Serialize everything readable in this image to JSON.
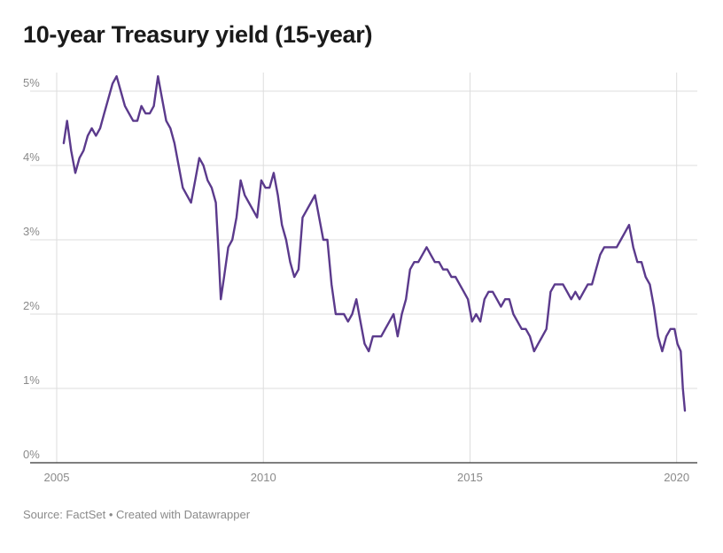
{
  "title": "10-year Treasury yield (15-year)",
  "footer": {
    "source": "Source: FactSet",
    "separator": " • ",
    "credit": "Created with Datawrapper"
  },
  "colors": {
    "line": "#5b3a8c",
    "grid": "#dddddd",
    "axis": "#333333",
    "label": "#8a8a8a"
  },
  "chart_data": {
    "type": "line",
    "title": "10-year Treasury yield (15-year)",
    "xlabel": "",
    "ylabel": "",
    "xlim": [
      2005.0,
      2020.5
    ],
    "ylim": [
      0,
      5.25
    ],
    "x_ticks": [
      2005,
      2010,
      2015,
      2020
    ],
    "x_tick_labels": [
      "2005",
      "2010",
      "2015",
      "2020"
    ],
    "y_ticks": [
      0,
      1,
      2,
      3,
      4,
      5
    ],
    "y_tick_labels": [
      "0%",
      "1%",
      "2%",
      "3%",
      "4%",
      "5%"
    ],
    "grid": true,
    "legend": "none",
    "series": [
      {
        "x": [
          2005.17,
          2005.25,
          2005.35,
          2005.45,
          2005.55,
          2005.65,
          2005.75,
          2005.85,
          2005.95,
          2006.05,
          2006.15,
          2006.25,
          2006.35,
          2006.45,
          2006.55,
          2006.65,
          2006.75,
          2006.85,
          2006.95,
          2007.05,
          2007.15,
          2007.25,
          2007.35,
          2007.45,
          2007.55,
          2007.65,
          2007.75,
          2007.85,
          2007.95,
          2008.05,
          2008.15,
          2008.25,
          2008.35,
          2008.45,
          2008.55,
          2008.65,
          2008.75,
          2008.85,
          2008.92,
          2008.97,
          2009.05,
          2009.15,
          2009.25,
          2009.35,
          2009.45,
          2009.55,
          2009.65,
          2009.75,
          2009.85,
          2009.95,
          2010.05,
          2010.15,
          2010.25,
          2010.35,
          2010.45,
          2010.55,
          2010.65,
          2010.75,
          2010.85,
          2010.95,
          2011.05,
          2011.15,
          2011.25,
          2011.35,
          2011.45,
          2011.55,
          2011.65,
          2011.75,
          2011.85,
          2011.95,
          2012.05,
          2012.15,
          2012.25,
          2012.35,
          2012.45,
          2012.55,
          2012.65,
          2012.75,
          2012.85,
          2012.95,
          2013.05,
          2013.15,
          2013.25,
          2013.35,
          2013.45,
          2013.55,
          2013.65,
          2013.75,
          2013.85,
          2013.95,
          2014.05,
          2014.15,
          2014.25,
          2014.35,
          2014.45,
          2014.55,
          2014.65,
          2014.75,
          2014.85,
          2014.95,
          2015.05,
          2015.15,
          2015.25,
          2015.35,
          2015.45,
          2015.55,
          2015.65,
          2015.75,
          2015.85,
          2015.95,
          2016.05,
          2016.15,
          2016.25,
          2016.35,
          2016.45,
          2016.55,
          2016.65,
          2016.75,
          2016.85,
          2016.95,
          2017.05,
          2017.15,
          2017.25,
          2017.35,
          2017.45,
          2017.55,
          2017.65,
          2017.75,
          2017.85,
          2017.95,
          2018.05,
          2018.15,
          2018.25,
          2018.35,
          2018.45,
          2018.55,
          2018.65,
          2018.75,
          2018.85,
          2018.95,
          2019.05,
          2019.15,
          2019.25,
          2019.35,
          2019.45,
          2019.55,
          2019.65,
          2019.75,
          2019.85,
          2019.95,
          2020.02,
          2020.1,
          2020.15,
          2020.2
        ],
        "y": [
          4.3,
          4.6,
          4.2,
          3.9,
          4.1,
          4.2,
          4.4,
          4.5,
          4.4,
          4.5,
          4.7,
          4.9,
          5.1,
          5.2,
          5.0,
          4.8,
          4.7,
          4.6,
          4.6,
          4.8,
          4.7,
          4.7,
          4.8,
          5.2,
          4.9,
          4.6,
          4.5,
          4.3,
          4.0,
          3.7,
          3.6,
          3.5,
          3.8,
          4.1,
          4.0,
          3.8,
          3.7,
          3.5,
          2.8,
          2.2,
          2.5,
          2.9,
          3.0,
          3.3,
          3.8,
          3.6,
          3.5,
          3.4,
          3.3,
          3.8,
          3.7,
          3.7,
          3.9,
          3.6,
          3.2,
          3.0,
          2.7,
          2.5,
          2.6,
          3.3,
          3.4,
          3.5,
          3.6,
          3.3,
          3.0,
          3.0,
          2.4,
          2.0,
          2.0,
          2.0,
          1.9,
          2.0,
          2.2,
          1.9,
          1.6,
          1.5,
          1.7,
          1.7,
          1.7,
          1.8,
          1.9,
          2.0,
          1.7,
          2.0,
          2.2,
          2.6,
          2.7,
          2.7,
          2.8,
          2.9,
          2.8,
          2.7,
          2.7,
          2.6,
          2.6,
          2.5,
          2.5,
          2.4,
          2.3,
          2.2,
          1.9,
          2.0,
          1.9,
          2.2,
          2.3,
          2.3,
          2.2,
          2.1,
          2.2,
          2.2,
          2.0,
          1.9,
          1.8,
          1.8,
          1.7,
          1.5,
          1.6,
          1.7,
          1.8,
          2.3,
          2.4,
          2.4,
          2.4,
          2.3,
          2.2,
          2.3,
          2.2,
          2.3,
          2.4,
          2.4,
          2.6,
          2.8,
          2.9,
          2.9,
          2.9,
          2.9,
          3.0,
          3.1,
          3.2,
          2.9,
          2.7,
          2.7,
          2.5,
          2.4,
          2.1,
          1.7,
          1.5,
          1.7,
          1.8,
          1.8,
          1.6,
          1.5,
          1.0,
          0.7
        ]
      }
    ]
  }
}
